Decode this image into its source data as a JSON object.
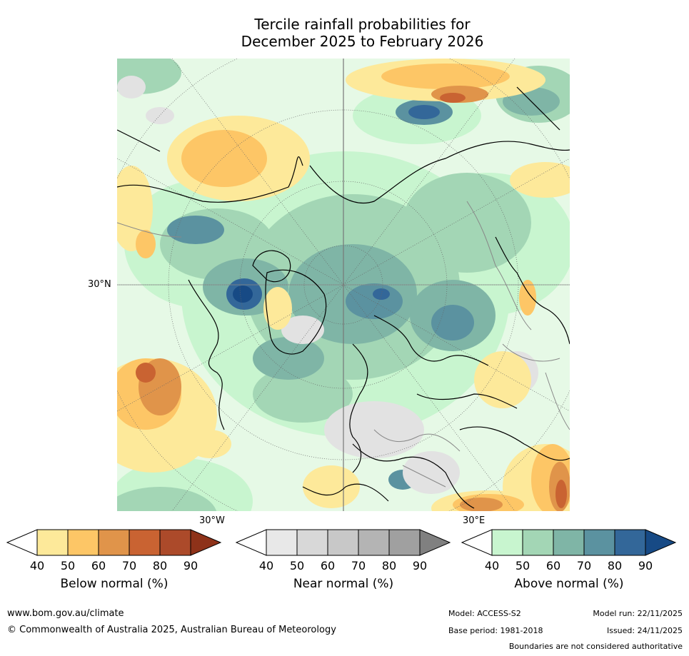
{
  "title": {
    "line1": "Tercile rainfall probabilities for",
    "line2": "December 2025 to February 2026"
  },
  "map": {
    "lat_label": "30°N",
    "lon_label_left": "30°W",
    "lon_label_right": "30°E"
  },
  "colorbars": [
    {
      "label": "Below normal (%)",
      "ticks": [
        "40",
        "50",
        "60",
        "70",
        "80",
        "90"
      ],
      "colors": [
        "#ffffff",
        "#fde99a",
        "#fdc666",
        "#e0944a",
        "#c96332",
        "#ac4a2a",
        "#8e3219"
      ]
    },
    {
      "label": "Near normal (%)",
      "ticks": [
        "40",
        "50",
        "60",
        "70",
        "80",
        "90"
      ],
      "colors": [
        "#ffffff",
        "#e8e8e8",
        "#d8d8d8",
        "#c8c8c8",
        "#b4b4b4",
        "#a0a0a0",
        "#808080"
      ]
    },
    {
      "label": "Above normal (%)",
      "ticks": [
        "40",
        "50",
        "60",
        "70",
        "80",
        "90"
      ],
      "colors": [
        "#ffffff",
        "#c8f5cf",
        "#a3d6b5",
        "#7fb5a6",
        "#5b92a0",
        "#336799",
        "#174a85"
      ]
    }
  ],
  "footer": {
    "website": "www.bom.gov.au/climate",
    "copyright": "© Commonwealth of Australia 2025, Australian Bureau of Meteorology",
    "model": "Model: ACCESS-S2",
    "base_period": "Base period: 1981-2018",
    "model_run": "Model run: 22/11/2025",
    "issued": "Issued: 24/11/2025",
    "disclaimer": "Boundaries are not considered authoritative"
  }
}
